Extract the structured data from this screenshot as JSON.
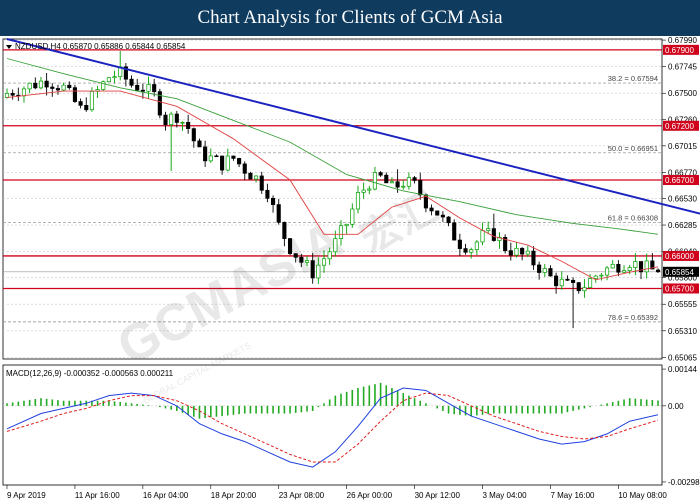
{
  "banner": {
    "title": "Chart Analysis for Clients of GCM Asia"
  },
  "colors": {
    "banner": "#0f3b5e",
    "bull": "#00a000",
    "bear": "#000000",
    "support": "#d0021b",
    "trendline": "#1a22c0",
    "ma_fast": "#e04040",
    "ma_slow": "#3aa03a",
    "macd_line": "#2040e0",
    "signal_line": "#e02020",
    "histogram": "#22aa22"
  },
  "chart_data": [
    {
      "type": "candlestick",
      "header": "NZDUSD,H4  0.65870 0.65886 0.65844 0.65854",
      "symbol": "NZDUSD",
      "timeframe": "H4",
      "ohlc_last": {
        "open": 0.6587,
        "high": 0.65886,
        "low": 0.65844,
        "close": 0.65854
      },
      "ylim": [
        0.6505,
        0.68
      ],
      "y_ticks": [
        "0.67990",
        "0.67745",
        "0.67500",
        "0.67260",
        "0.67015",
        "0.66770",
        "0.66530",
        "0.66285",
        "0.66040",
        "0.65800",
        "0.65555",
        "0.65310",
        "0.65065"
      ],
      "y_tick_values": [
        0.6799,
        0.67745,
        0.675,
        0.6726,
        0.67015,
        0.6677,
        0.6653,
        0.66285,
        0.6604,
        0.658,
        0.65555,
        0.6531,
        0.65065
      ],
      "x_ticks": [
        "9 Apr 2019",
        "11 Apr 16:00",
        "16 Apr 04:00",
        "18 Apr 20:00",
        "23 Apr 08:00",
        "26 Apr 00:00",
        "30 Apr 12:00",
        "3 May 04:00",
        "7 May 16:00",
        "10 May 08:00"
      ],
      "x_tick_index": [
        0,
        12,
        24,
        36,
        48,
        60,
        72,
        84,
        96,
        108
      ],
      "n_bars": 116,
      "trendline": {
        "from": {
          "bar": 0,
          "price": 0.68
        },
        "to": {
          "bar": 127,
          "price": 0.6633
        }
      },
      "horizontal_levels": [
        {
          "price": 0.679,
          "label": "0.67900"
        },
        {
          "price": 0.672,
          "label": "0.67200"
        },
        {
          "price": 0.667,
          "label": "0.66700"
        },
        {
          "price": 0.66,
          "label": "0.66000"
        },
        {
          "price": 0.657,
          "label": "0.65700"
        }
      ],
      "fibonacci": [
        {
          "label": "38.2 = 0.67594",
          "price": 0.67594
        },
        {
          "label": "50.0 = 0.66951",
          "price": 0.66951
        },
        {
          "label": "61.8 = 0.66308",
          "price": 0.66308
        },
        {
          "label": "78.6 = 0.65392",
          "price": 0.65392
        }
      ],
      "current_price_label": "0.65854",
      "current_price": 0.65854,
      "close_path": [
        [
          0,
          0.675
        ],
        [
          4,
          0.6757
        ],
        [
          7,
          0.6762
        ],
        [
          10,
          0.6755
        ],
        [
          13,
          0.6735
        ],
        [
          16,
          0.6752
        ],
        [
          18,
          0.6765
        ],
        [
          20,
          0.6768
        ],
        [
          22,
          0.6758
        ],
        [
          24,
          0.6755
        ],
        [
          26,
          0.6748
        ],
        [
          28,
          0.6725
        ],
        [
          30,
          0.673
        ],
        [
          32,
          0.6718
        ],
        [
          34,
          0.6695
        ],
        [
          36,
          0.669
        ],
        [
          38,
          0.6685
        ],
        [
          40,
          0.669
        ],
        [
          42,
          0.668
        ],
        [
          44,
          0.6672
        ],
        [
          46,
          0.666
        ],
        [
          48,
          0.6628
        ],
        [
          50,
          0.6608
        ],
        [
          52,
          0.6595
        ],
        [
          54,
          0.6585
        ],
        [
          56,
          0.6598
        ],
        [
          58,
          0.6612
        ],
        [
          60,
          0.663
        ],
        [
          62,
          0.6655
        ],
        [
          64,
          0.6668
        ],
        [
          66,
          0.6672
        ],
        [
          68,
          0.6662
        ],
        [
          70,
          0.6668
        ],
        [
          72,
          0.6665
        ],
        [
          74,
          0.665
        ],
        [
          76,
          0.664
        ],
        [
          78,
          0.6625
        ],
        [
          80,
          0.6612
        ],
        [
          82,
          0.6608
        ],
        [
          84,
          0.6618
        ],
        [
          86,
          0.662
        ],
        [
          88,
          0.6608
        ],
        [
          90,
          0.6603
        ],
        [
          92,
          0.6598
        ],
        [
          94,
          0.659
        ],
        [
          96,
          0.658
        ],
        [
          98,
          0.6575
        ],
        [
          100,
          0.657
        ],
        [
          102,
          0.6573
        ],
        [
          104,
          0.6582
        ],
        [
          106,
          0.6588
        ],
        [
          108,
          0.6592
        ],
        [
          110,
          0.6595
        ],
        [
          112,
          0.659
        ],
        [
          115,
          0.65854
        ]
      ],
      "ma_fast": [
        [
          0,
          0.6746
        ],
        [
          10,
          0.6752
        ],
        [
          20,
          0.6752
        ],
        [
          30,
          0.6738
        ],
        [
          40,
          0.6708
        ],
        [
          50,
          0.667
        ],
        [
          56,
          0.662
        ],
        [
          62,
          0.662
        ],
        [
          68,
          0.6645
        ],
        [
          74,
          0.6655
        ],
        [
          80,
          0.6635
        ],
        [
          86,
          0.6618
        ],
        [
          92,
          0.661
        ],
        [
          98,
          0.6595
        ],
        [
          104,
          0.6578
        ],
        [
          110,
          0.6585
        ],
        [
          115,
          0.659
        ]
      ],
      "ma_slow": [
        [
          0,
          0.6782
        ],
        [
          10,
          0.6768
        ],
        [
          20,
          0.6755
        ],
        [
          30,
          0.6745
        ],
        [
          40,
          0.6725
        ],
        [
          50,
          0.6705
        ],
        [
          60,
          0.6675
        ],
        [
          70,
          0.666
        ],
        [
          80,
          0.665
        ],
        [
          90,
          0.6638
        ],
        [
          100,
          0.663
        ],
        [
          108,
          0.6625
        ],
        [
          115,
          0.662
        ]
      ]
    },
    {
      "type": "macd",
      "header": "MACD(12,26,9) -0.000352 -0.000563 0.000211",
      "params": "12,26,9",
      "macd_value": -0.000352,
      "signal_value": -0.000563,
      "hist_value": 0.000211,
      "ylim": [
        -0.0031,
        0.0016
      ],
      "y_ticks": [
        "0.00144",
        "0.00",
        "-0.00298"
      ],
      "y_tick_values": [
        0.00144,
        0.0,
        -0.00298
      ],
      "macd_line": [
        [
          0,
          -0.0009
        ],
        [
          6,
          -0.0003
        ],
        [
          10,
          -0.0001
        ],
        [
          14,
          0.0001
        ],
        [
          18,
          0.0004
        ],
        [
          22,
          0.0005
        ],
        [
          26,
          0.0004
        ],
        [
          30,
          0.0
        ],
        [
          34,
          -0.0007
        ],
        [
          38,
          -0.0011
        ],
        [
          42,
          -0.0014
        ],
        [
          46,
          -0.0018
        ],
        [
          50,
          -0.0022
        ],
        [
          54,
          -0.0024
        ],
        [
          58,
          -0.0018
        ],
        [
          62,
          -0.0008
        ],
        [
          66,
          0.0003
        ],
        [
          70,
          0.0007
        ],
        [
          74,
          0.0006
        ],
        [
          78,
          0.0001
        ],
        [
          82,
          -0.0004
        ],
        [
          86,
          -0.0007
        ],
        [
          90,
          -0.001
        ],
        [
          94,
          -0.0013
        ],
        [
          98,
          -0.0015
        ],
        [
          102,
          -0.0014
        ],
        [
          106,
          -0.0011
        ],
        [
          110,
          -0.0006
        ],
        [
          115,
          -0.000352
        ]
      ],
      "signal_line": [
        [
          0,
          -0.001
        ],
        [
          6,
          -0.0006
        ],
        [
          10,
          -0.0003
        ],
        [
          14,
          -0.0001
        ],
        [
          18,
          0.0002
        ],
        [
          22,
          0.0004
        ],
        [
          26,
          0.0004
        ],
        [
          30,
          0.0002
        ],
        [
          34,
          -0.0002
        ],
        [
          38,
          -0.0007
        ],
        [
          42,
          -0.0011
        ],
        [
          46,
          -0.0015
        ],
        [
          50,
          -0.0019
        ],
        [
          54,
          -0.0022
        ],
        [
          58,
          -0.0022
        ],
        [
          62,
          -0.0015
        ],
        [
          66,
          -0.0006
        ],
        [
          70,
          0.0002
        ],
        [
          74,
          0.0005
        ],
        [
          78,
          0.0004
        ],
        [
          82,
          0.0
        ],
        [
          86,
          -0.0004
        ],
        [
          90,
          -0.0007
        ],
        [
          94,
          -0.001
        ],
        [
          98,
          -0.0012
        ],
        [
          102,
          -0.0013
        ],
        [
          106,
          -0.0012
        ],
        [
          110,
          -0.0009
        ],
        [
          115,
          -0.000563
        ]
      ],
      "histogram": [
        [
          0,
          0.0001
        ],
        [
          6,
          0.0003
        ],
        [
          10,
          0.0002
        ],
        [
          14,
          0.0002
        ],
        [
          18,
          0.0002
        ],
        [
          22,
          0.0001
        ],
        [
          26,
          0.0
        ],
        [
          30,
          -0.0002
        ],
        [
          34,
          -0.0005
        ],
        [
          38,
          -0.0004
        ],
        [
          42,
          -0.0003
        ],
        [
          46,
          -0.0003
        ],
        [
          50,
          -0.0003
        ],
        [
          54,
          -0.0002
        ],
        [
          58,
          0.0004
        ],
        [
          62,
          0.0007
        ],
        [
          66,
          0.0009
        ],
        [
          70,
          0.0005
        ],
        [
          74,
          0.0001
        ],
        [
          78,
          -0.0003
        ],
        [
          82,
          -0.0004
        ],
        [
          86,
          -0.0003
        ],
        [
          90,
          -0.0003
        ],
        [
          94,
          -0.0003
        ],
        [
          98,
          -0.0003
        ],
        [
          102,
          -0.0001
        ],
        [
          106,
          0.0001
        ],
        [
          110,
          0.0003
        ],
        [
          115,
          0.000211
        ]
      ]
    }
  ]
}
